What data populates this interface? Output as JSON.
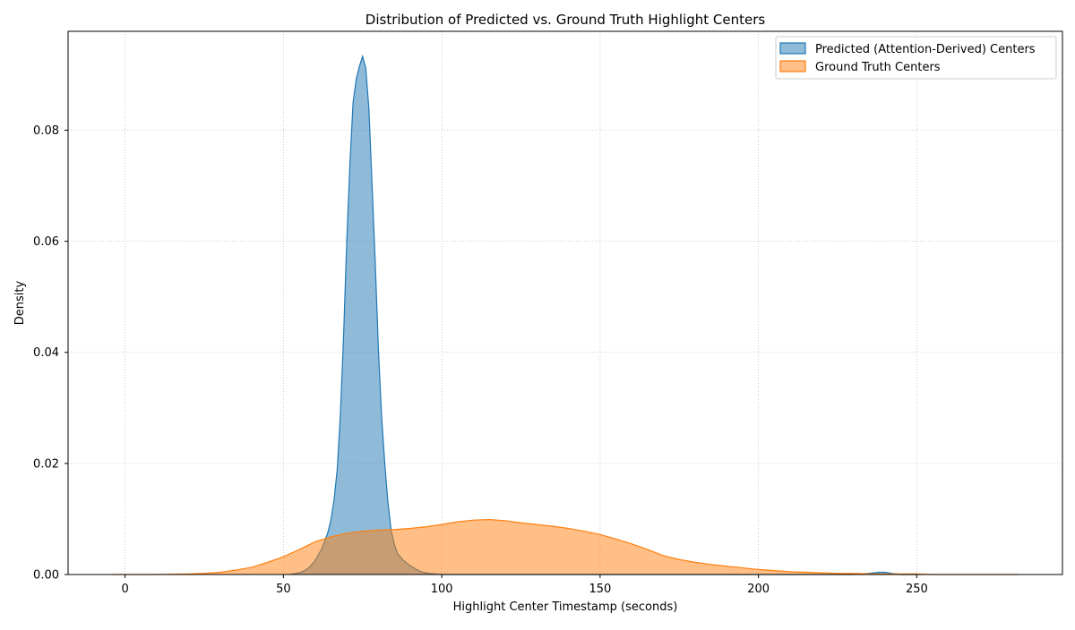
{
  "chart_data": {
    "type": "area",
    "title": "Distribution of Predicted vs. Ground Truth Highlight Centers",
    "xlabel": "Highlight Center Timestamp (seconds)",
    "ylabel": "Density",
    "xlim": [
      -18,
      296
    ],
    "ylim": [
      0,
      0.0978
    ],
    "x_ticks": [
      0,
      50,
      100,
      150,
      200,
      250
    ],
    "x_tick_labels": [
      "0",
      "50",
      "100",
      "150",
      "200",
      "250"
    ],
    "y_ticks": [
      0,
      0.02,
      0.04,
      0.06,
      0.08
    ],
    "y_tick_labels": [
      "0.00",
      "0.02",
      "0.04",
      "0.06",
      "0.08"
    ],
    "grid": true,
    "grid_style": "dotted",
    "legend_position": "upper right",
    "series": [
      {
        "name": "Predicted (Attention-Derived) Centers",
        "color": "#1f77b4",
        "x": [
          52,
          54,
          56,
          58,
          60,
          62,
          64,
          65,
          66,
          67,
          68,
          69,
          70,
          71,
          72,
          73,
          74,
          75,
          76,
          77,
          78,
          79,
          80,
          81,
          82,
          83,
          84,
          85,
          86,
          88,
          90,
          92,
          94,
          96,
          98,
          100,
          230,
          235,
          238,
          240,
          242,
          245,
          250
        ],
        "y": [
          0.0,
          0.0002,
          0.0005,
          0.0012,
          0.0025,
          0.0045,
          0.0075,
          0.0098,
          0.0135,
          0.019,
          0.029,
          0.043,
          0.06,
          0.074,
          0.085,
          0.0892,
          0.0915,
          0.0933,
          0.0912,
          0.0838,
          0.07,
          0.056,
          0.0405,
          0.0285,
          0.02,
          0.013,
          0.008,
          0.0055,
          0.0038,
          0.0025,
          0.0016,
          0.0009,
          0.0004,
          0.0002,
          0.0001,
          0.0,
          0.0,
          0.0002,
          0.0004,
          0.0004,
          0.0002,
          0.0,
          0.0
        ]
      },
      {
        "name": "Ground Truth Centers",
        "color": "#ff7f0e",
        "x": [
          -4,
          10,
          20,
          25,
          30,
          35,
          40,
          45,
          50,
          55,
          60,
          65,
          70,
          75,
          80,
          85,
          90,
          95,
          100,
          105,
          110,
          115,
          120,
          125,
          130,
          135,
          140,
          145,
          150,
          155,
          160,
          165,
          170,
          175,
          180,
          185,
          190,
          195,
          200,
          205,
          210,
          215,
          220,
          225,
          230,
          235,
          240,
          245,
          250,
          255,
          260,
          265,
          270,
          282
        ],
        "y": [
          0.0,
          0.0,
          0.0001,
          0.0002,
          0.0004,
          0.0008,
          0.0013,
          0.0022,
          0.0032,
          0.0045,
          0.0059,
          0.0068,
          0.0074,
          0.0078,
          0.008,
          0.0081,
          0.0083,
          0.0086,
          0.009,
          0.0095,
          0.0098,
          0.0099,
          0.0097,
          0.0093,
          0.009,
          0.0087,
          0.0083,
          0.0078,
          0.0072,
          0.0064,
          0.0055,
          0.0045,
          0.0034,
          0.0027,
          0.0022,
          0.0018,
          0.0015,
          0.0012,
          0.0009,
          0.0007,
          0.0005,
          0.0004,
          0.0003,
          0.0002,
          0.0002,
          0.0001,
          0.0001,
          0.0001,
          0.0001,
          0.0,
          0.0,
          0.0,
          0.0,
          0.0
        ]
      }
    ]
  }
}
